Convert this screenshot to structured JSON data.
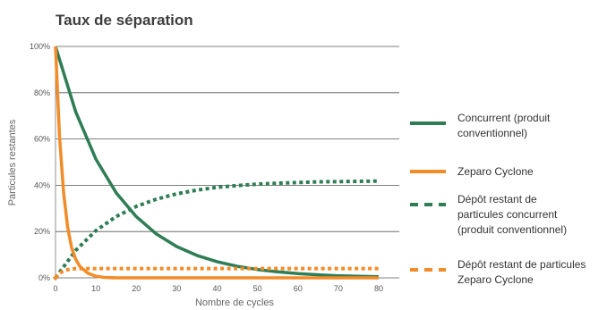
{
  "chart_data": {
    "type": "line",
    "title": "Taux de séparation",
    "xlabel": "Nombre de cycles",
    "ylabel": "Particules restantes",
    "xlim": [
      0,
      80
    ],
    "ylim": [
      0,
      100
    ],
    "xticks": [
      0,
      10,
      20,
      30,
      40,
      50,
      60,
      70,
      80
    ],
    "yticks": [
      0,
      20,
      40,
      60,
      80,
      100
    ],
    "ytick_labels": [
      "0%",
      "20%",
      "40%",
      "60%",
      "80%",
      "100%"
    ],
    "grid": "horizontal",
    "legend_position": "right",
    "series": [
      {
        "name": "Concurrent (produit conventionnel)",
        "style": "solid",
        "color": "#2e7d54",
        "x": [
          0,
          5,
          10,
          15,
          20,
          25,
          30,
          35,
          40,
          45,
          50,
          55,
          60,
          65,
          70,
          75,
          80
        ],
        "values": [
          100,
          71.7,
          51.3,
          36.8,
          26.4,
          18.9,
          13.5,
          9.7,
          7.0,
          5.0,
          3.6,
          2.6,
          1.8,
          1.3,
          0.9,
          0.7,
          0.5
        ]
      },
      {
        "name": "Zeparo Cyclone",
        "style": "solid",
        "color": "#f28c28",
        "x": [
          0,
          1,
          2,
          3,
          4,
          5,
          6,
          8,
          10,
          12,
          15,
          80
        ],
        "values": [
          100,
          61,
          37,
          22,
          13,
          8,
          5,
          2,
          0.7,
          0.2,
          0,
          0
        ]
      },
      {
        "name": "Dépôt restant de particules concurrent (produit conventionnel)",
        "style": "dotted",
        "color": "#2e7d54",
        "x": [
          0,
          5,
          10,
          15,
          20,
          25,
          30,
          35,
          40,
          45,
          50,
          55,
          60,
          65,
          70,
          75,
          80
        ],
        "values": [
          0,
          11.9,
          20.4,
          26.5,
          30.9,
          34.0,
          36.3,
          37.9,
          39.1,
          39.9,
          40.5,
          40.9,
          41.2,
          41.5,
          41.6,
          41.7,
          41.8
        ]
      },
      {
        "name": "Dépôt restant de particules Zeparo Cyclone",
        "style": "dotted",
        "color": "#f28c28",
        "x": [
          0,
          1,
          2,
          3,
          4,
          5,
          7,
          10,
          80
        ],
        "values": [
          0,
          2,
          3,
          3.5,
          3.8,
          4,
          4,
          4,
          4
        ]
      }
    ]
  }
}
